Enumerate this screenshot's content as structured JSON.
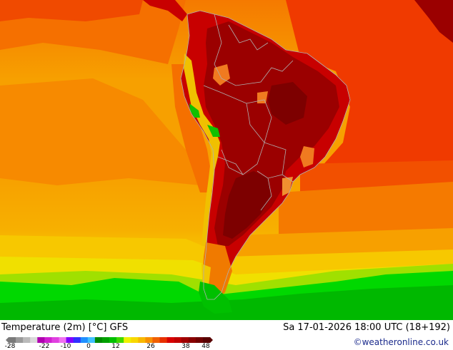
{
  "map": {
    "palette": {
      "ocean_cool": "#f7c000",
      "ocean_orange": "#f7a000",
      "ocean_warm": "#f57a00",
      "ocean_red": "#f03a00",
      "land_hot": "#c80000",
      "land_very_hot": "#9b0000",
      "land_extreme": "#7d0000",
      "andes_green": "#10c000",
      "southern_yellow": "#f0e000",
      "southern_lime": "#a0e000",
      "southern_green": "#00d800",
      "southern_dark_green": "#00b000",
      "border": "#b0b0b0"
    }
  },
  "footer": {
    "title": "Temperature (2m) [°C] GFS",
    "validity": "Sa 17-01-2026 18:00 UTC (18+192)",
    "copyright": "©weatheronline.co.uk",
    "scale_labels": [
      "-28",
      "-22",
      "-10",
      "0",
      "12",
      "26",
      "38",
      "48"
    ],
    "scale_colors": [
      "#7a7a7a",
      "#9a9a9a",
      "#bababa",
      "#dadada",
      "#b000b0",
      "#d020d0",
      "#e040e0",
      "#f070f0",
      "#8000ff",
      "#3030ff",
      "#2090ff",
      "#40c0ff",
      "#008800",
      "#00a000",
      "#00c000",
      "#40d800",
      "#f0f000",
      "#f8d800",
      "#f8b800",
      "#f89000",
      "#f06000",
      "#e83000",
      "#d80000",
      "#c00000",
      "#a00000",
      "#880000",
      "#700000",
      "#580000"
    ]
  }
}
